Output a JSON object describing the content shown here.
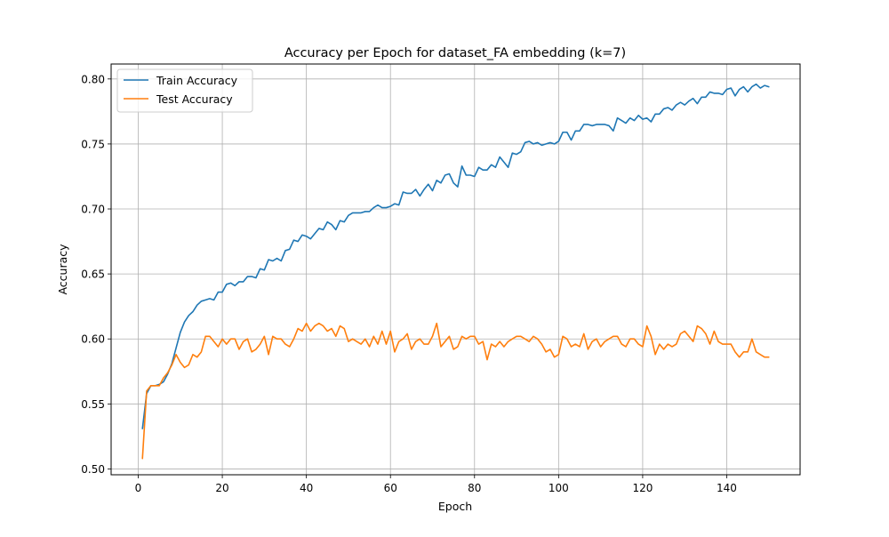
{
  "chart_data": {
    "type": "line",
    "title": "Accuracy per Epoch for dataset_FA embedding (k=7)",
    "xlabel": "Epoch",
    "ylabel": "Accuracy",
    "xlim": [
      -6.45,
      157.45
    ],
    "ylim": [
      0.4955,
      0.8115
    ],
    "xticks": [
      0,
      20,
      40,
      60,
      80,
      100,
      120,
      140
    ],
    "yticks": [
      0.5,
      0.55,
      0.6,
      0.65,
      0.7,
      0.75,
      0.8
    ],
    "ytick_labels": [
      "0.50",
      "0.55",
      "0.60",
      "0.65",
      "0.70",
      "0.75",
      "0.80"
    ],
    "grid": true,
    "legend_position": "top-left",
    "series": [
      {
        "name": "Train Accuracy",
        "color": "#1f77b4",
        "x": [
          1,
          2,
          3,
          4,
          5,
          6,
          7,
          8,
          9,
          10,
          11,
          12,
          13,
          14,
          15,
          16,
          17,
          18,
          19,
          20,
          21,
          22,
          23,
          24,
          25,
          26,
          27,
          28,
          29,
          30,
          31,
          32,
          33,
          34,
          35,
          36,
          37,
          38,
          39,
          40,
          41,
          42,
          43,
          44,
          45,
          46,
          47,
          48,
          49,
          50,
          51,
          52,
          53,
          54,
          55,
          56,
          57,
          58,
          59,
          60,
          61,
          62,
          63,
          64,
          65,
          66,
          67,
          68,
          69,
          70,
          71,
          72,
          73,
          74,
          75,
          76,
          77,
          78,
          79,
          80,
          81,
          82,
          83,
          84,
          85,
          86,
          87,
          88,
          89,
          90,
          91,
          92,
          93,
          94,
          95,
          96,
          97,
          98,
          99,
          100,
          101,
          102,
          103,
          104,
          105,
          106,
          107,
          108,
          109,
          110,
          111,
          112,
          113,
          114,
          115,
          116,
          117,
          118,
          119,
          120,
          121,
          122,
          123,
          124,
          125,
          126,
          127,
          128,
          129,
          130,
          131,
          132,
          133,
          134,
          135,
          136,
          137,
          138,
          139,
          140,
          141,
          142,
          143,
          144,
          145,
          146,
          147,
          148,
          149,
          150
        ],
        "values": [
          0.531,
          0.558,
          0.564,
          0.564,
          0.565,
          0.567,
          0.573,
          0.581,
          0.593,
          0.605,
          0.613,
          0.618,
          0.621,
          0.626,
          0.629,
          0.63,
          0.631,
          0.63,
          0.636,
          0.636,
          0.642,
          0.643,
          0.641,
          0.644,
          0.644,
          0.648,
          0.648,
          0.647,
          0.654,
          0.653,
          0.661,
          0.66,
          0.662,
          0.66,
          0.668,
          0.669,
          0.676,
          0.675,
          0.68,
          0.679,
          0.677,
          0.681,
          0.685,
          0.684,
          0.69,
          0.688,
          0.684,
          0.691,
          0.69,
          0.695,
          0.697,
          0.697,
          0.697,
          0.698,
          0.698,
          0.701,
          0.703,
          0.701,
          0.701,
          0.702,
          0.704,
          0.703,
          0.713,
          0.712,
          0.712,
          0.715,
          0.71,
          0.715,
          0.719,
          0.714,
          0.722,
          0.72,
          0.726,
          0.727,
          0.72,
          0.717,
          0.733,
          0.726,
          0.726,
          0.725,
          0.732,
          0.73,
          0.73,
          0.734,
          0.732,
          0.74,
          0.736,
          0.732,
          0.743,
          0.742,
          0.744,
          0.751,
          0.752,
          0.75,
          0.751,
          0.749,
          0.75,
          0.751,
          0.75,
          0.752,
          0.759,
          0.759,
          0.753,
          0.76,
          0.76,
          0.765,
          0.765,
          0.764,
          0.765,
          0.765,
          0.765,
          0.764,
          0.76,
          0.77,
          0.768,
          0.766,
          0.77,
          0.768,
          0.772,
          0.769,
          0.77,
          0.767,
          0.773,
          0.773,
          0.777,
          0.778,
          0.776,
          0.78,
          0.782,
          0.78,
          0.783,
          0.785,
          0.781,
          0.786,
          0.786,
          0.79,
          0.789,
          0.789,
          0.788,
          0.792,
          0.793,
          0.787,
          0.792,
          0.794,
          0.79,
          0.794,
          0.796,
          0.793,
          0.795,
          0.794
        ]
      },
      {
        "name": "Test Accuracy",
        "color": "#ff7f0e",
        "x": [
          1,
          2,
          3,
          4,
          5,
          6,
          7,
          8,
          9,
          10,
          11,
          12,
          13,
          14,
          15,
          16,
          17,
          18,
          19,
          20,
          21,
          22,
          23,
          24,
          25,
          26,
          27,
          28,
          29,
          30,
          31,
          32,
          33,
          34,
          35,
          36,
          37,
          38,
          39,
          40,
          41,
          42,
          43,
          44,
          45,
          46,
          47,
          48,
          49,
          50,
          51,
          52,
          53,
          54,
          55,
          56,
          57,
          58,
          59,
          60,
          61,
          62,
          63,
          64,
          65,
          66,
          67,
          68,
          69,
          70,
          71,
          72,
          73,
          74,
          75,
          76,
          77,
          78,
          79,
          80,
          81,
          82,
          83,
          84,
          85,
          86,
          87,
          88,
          89,
          90,
          91,
          92,
          93,
          94,
          95,
          96,
          97,
          98,
          99,
          100,
          101,
          102,
          103,
          104,
          105,
          106,
          107,
          108,
          109,
          110,
          111,
          112,
          113,
          114,
          115,
          116,
          117,
          118,
          119,
          120,
          121,
          122,
          123,
          124,
          125,
          126,
          127,
          128,
          129,
          130,
          131,
          132,
          133,
          134,
          135,
          136,
          137,
          138,
          139,
          140,
          141,
          142,
          143,
          144,
          145,
          146,
          147,
          148,
          149,
          150
        ],
        "values": [
          0.508,
          0.56,
          0.564,
          0.564,
          0.564,
          0.57,
          0.574,
          0.58,
          0.588,
          0.582,
          0.578,
          0.58,
          0.588,
          0.586,
          0.59,
          0.602,
          0.602,
          0.598,
          0.594,
          0.6,
          0.596,
          0.6,
          0.6,
          0.592,
          0.598,
          0.6,
          0.59,
          0.592,
          0.596,
          0.602,
          0.588,
          0.602,
          0.6,
          0.6,
          0.596,
          0.594,
          0.6,
          0.608,
          0.606,
          0.612,
          0.606,
          0.61,
          0.612,
          0.61,
          0.606,
          0.608,
          0.602,
          0.61,
          0.608,
          0.598,
          0.6,
          0.598,
          0.596,
          0.6,
          0.594,
          0.602,
          0.596,
          0.606,
          0.596,
          0.606,
          0.59,
          0.598,
          0.6,
          0.604,
          0.592,
          0.598,
          0.6,
          0.596,
          0.596,
          0.602,
          0.612,
          0.594,
          0.598,
          0.602,
          0.592,
          0.594,
          0.602,
          0.6,
          0.602,
          0.602,
          0.596,
          0.598,
          0.584,
          0.596,
          0.594,
          0.598,
          0.594,
          0.598,
          0.6,
          0.602,
          0.602,
          0.6,
          0.598,
          0.602,
          0.6,
          0.596,
          0.59,
          0.592,
          0.586,
          0.588,
          0.602,
          0.6,
          0.594,
          0.596,
          0.594,
          0.604,
          0.592,
          0.598,
          0.6,
          0.594,
          0.598,
          0.6,
          0.602,
          0.602,
          0.596,
          0.594,
          0.6,
          0.6,
          0.596,
          0.594,
          0.61,
          0.602,
          0.588,
          0.596,
          0.592,
          0.596,
          0.594,
          0.596,
          0.604,
          0.606,
          0.602,
          0.598,
          0.61,
          0.608,
          0.604,
          0.596,
          0.606,
          0.598,
          0.596,
          0.596,
          0.596,
          0.59,
          0.586,
          0.59,
          0.59,
          0.6,
          0.59,
          0.588,
          0.586,
          0.586
        ]
      }
    ]
  }
}
